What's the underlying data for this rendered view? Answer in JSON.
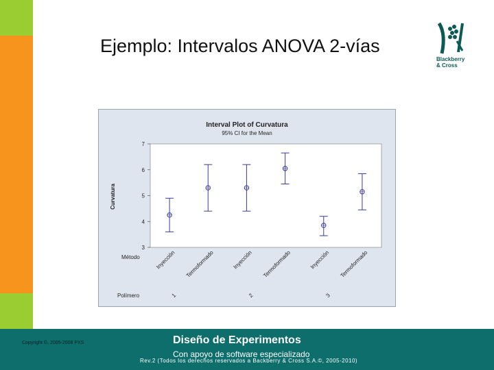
{
  "slide": {
    "title": "Ejemplo: Intervalos ANOVA 2-vías"
  },
  "logo": {
    "line1": "Blackberry",
    "line2": "& Cross"
  },
  "footer": {
    "copyright": "Copyright ©, 2005-2008 PXS",
    "title": "Diseño de Experimentos",
    "subtitle": "Con apoyo de software especializado",
    "revision": "Rev.2 (Todos los derechos reservados a Backberry & Cross S.A.©, 2005-2010)"
  },
  "colors": {
    "accent_orange": "#f7941d",
    "accent_green": "#9acd32",
    "footer_teal": "#0d6e6b",
    "series_blue": "#3a3aa0"
  },
  "chart_data": {
    "type": "interval",
    "title": "Interval Plot of Curvatura",
    "subtitle": "95% CI for the Mean",
    "ylabel": "Curvatura",
    "ylim": [
      3,
      7
    ],
    "yticks": [
      3,
      4,
      5,
      6,
      7
    ],
    "factor1_label": "Método",
    "factor2_label": "Polímero",
    "groups": [
      "1",
      "2",
      "3"
    ],
    "methods": [
      "Inyección",
      "Termoformado"
    ],
    "points": [
      {
        "group": "1",
        "method": "Inyección",
        "mean": 4.25,
        "lower": 3.6,
        "upper": 4.9
      },
      {
        "group": "1",
        "method": "Termoformado",
        "mean": 5.3,
        "lower": 4.4,
        "upper": 6.2
      },
      {
        "group": "2",
        "method": "Inyección",
        "mean": 5.3,
        "lower": 4.4,
        "upper": 6.2
      },
      {
        "group": "2",
        "method": "Termoformado",
        "mean": 6.05,
        "lower": 5.45,
        "upper": 6.65
      },
      {
        "group": "3",
        "method": "Inyección",
        "mean": 3.85,
        "lower": 3.45,
        "upper": 4.2
      },
      {
        "group": "3",
        "method": "Termoformado",
        "mean": 5.15,
        "lower": 4.45,
        "upper": 5.85
      }
    ],
    "grid": false
  }
}
